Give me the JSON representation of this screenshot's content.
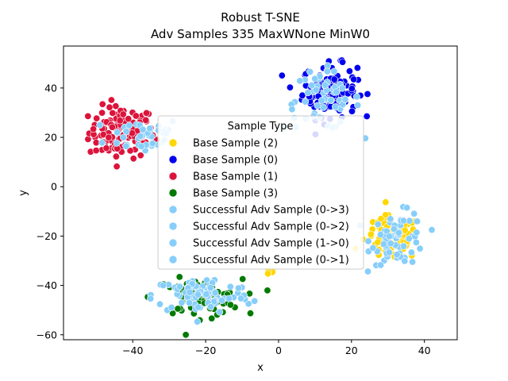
{
  "chart_data": {
    "type": "scatter",
    "title": [
      "Robust T-SNE",
      "Adv Samples 335 MaxWNone MinW0"
    ],
    "xlabel": "x",
    "ylabel": "y",
    "xlim": [
      -59,
      49
    ],
    "ylim": [
      -62,
      57
    ],
    "xticks": [
      -40,
      -20,
      0,
      20,
      40
    ],
    "yticks": [
      -60,
      -40,
      -20,
      0,
      20,
      40
    ],
    "xtick_labels": [
      "−40",
      "−20",
      "0",
      "20",
      "40"
    ],
    "ytick_labels": [
      "−60",
      "−40",
      "−20",
      "0",
      "20",
      "40"
    ],
    "grid": false,
    "legend": {
      "title": "Sample Type",
      "placement": "center",
      "entries": [
        {
          "label": "Base Sample (2)",
          "color": "#FFD700"
        },
        {
          "label": "Base Sample (0)",
          "color": "#0000EE"
        },
        {
          "label": "Base Sample (1)",
          "color": "#DC143C"
        },
        {
          "label": "Base Sample (3)",
          "color": "#007A00"
        },
        {
          "label": "Successful Adv Sample (0->3)",
          "color": "#87CEFA"
        },
        {
          "label": "Successful Adv Sample (0->2)",
          "color": "#87CEFA"
        },
        {
          "label": "Successful Adv Sample (1->0)",
          "color": "#87CEFA"
        },
        {
          "label": "Successful Adv Sample (0->1)",
          "color": "#87CEFA"
        }
      ]
    },
    "clusters": [
      {
        "series": "Base Sample (1)",
        "color": "#DC143C",
        "center": [
          -43,
          22
        ],
        "spread": [
          6,
          7
        ],
        "count": 120
      },
      {
        "series": "Successful Adv Sample (1->0)",
        "color": "#87CEFA",
        "center": [
          -37,
          21
        ],
        "spread": [
          7,
          5
        ],
        "count": 40
      },
      {
        "series": "Base Sample (0)",
        "color": "#0000EE",
        "center": [
          14,
          39
        ],
        "spread": [
          5,
          7
        ],
        "count": 130
      },
      {
        "series": "Successful Adv Sample (0->1)",
        "color": "#87CEFA",
        "center": [
          12,
          35
        ],
        "spread": [
          7,
          8
        ],
        "count": 55
      },
      {
        "series": "Base Sample (2)",
        "color": "#FFD700",
        "center": [
          31,
          -21
        ],
        "spread": [
          5,
          6
        ],
        "count": 90
      },
      {
        "series": "Successful Adv Sample (0->2)",
        "color": "#87CEFA",
        "center": [
          33,
          -21
        ],
        "spread": [
          5,
          7
        ],
        "count": 70
      },
      {
        "series": "Base Sample (3)",
        "color": "#007A00",
        "center": [
          -22,
          -45
        ],
        "spread": [
          8,
          5
        ],
        "count": 75
      },
      {
        "series": "Successful Adv Sample (0->3)",
        "color": "#87CEFA",
        "center": [
          -21,
          -44
        ],
        "spread": [
          9,
          5
        ],
        "count": 85
      },
      {
        "series": "Base Sample (2)",
        "color": "#FFD700",
        "center": [
          -2,
          -34
        ],
        "spread": [
          1,
          1
        ],
        "count": 5
      }
    ]
  }
}
